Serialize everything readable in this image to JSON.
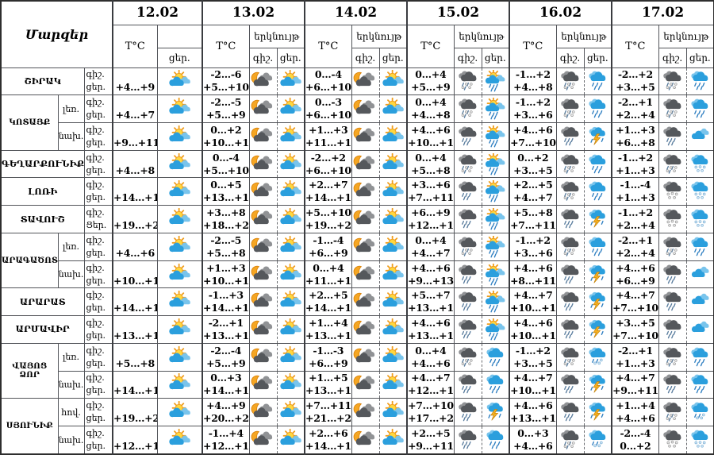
{
  "title": "Մարզեր",
  "dates": [
    "12.02",
    "13.02",
    "14.02",
    "15.02",
    "16.02",
    "17.02"
  ],
  "headers": {
    "temp": "T°C",
    "sky": "երկնույթ",
    "night": "գիշ.",
    "day": "ցեր."
  },
  "palette": {
    "moon": "#f5a623",
    "moon_edge": "#d9820b",
    "sun_fill": "#ffd73e",
    "sun_edge": "#f09d1c",
    "dark_cloud_front": "#55585c",
    "dark_cloud_back": "#909295",
    "blue_cloud_front": "#2b9fdd",
    "blue_cloud_back": "#79c4ec",
    "rain_blue": "#2f7fc1",
    "rain_gray": "#5a7d9e",
    "snow_light": "#e8e8e8",
    "snow_edge": "#9a9a9a",
    "snow_blue": "#d6e9f7",
    "snow_blue_edge": "#7fb2d6",
    "lightning": "#f6b021",
    "lightning_edge": "#c07f07"
  },
  "rows": [
    {
      "region": "ՇԻՐԱԿ",
      "region_rowspan": 1,
      "sub": null,
      "labels": [
        "գիշ.",
        "ցեր."
      ],
      "cells": [
        {
          "day": "+4...+9",
          "day_icon": "sun-cloud"
        },
        {
          "night": "-2...-6",
          "day": "+5...+10",
          "night_icon": "moon-cloud",
          "day_icon": "sun-cloud"
        },
        {
          "night": "0...-4",
          "day": "+6...+10",
          "night_icon": "moon-cloud",
          "day_icon": "sun-cloud"
        },
        {
          "night": "0...+4",
          "day": "+5...+9",
          "night_icon": "dark-sleet",
          "day_icon": "sun-cloud-rain"
        },
        {
          "night": "-1...+2",
          "day": "+4...+8",
          "night_icon": "dark-sleet",
          "day_icon": "blue-rain"
        },
        {
          "night": "-2...+2",
          "day": "+3...+5",
          "night_icon": "dark-sleet",
          "day_icon": "blue-rain"
        }
      ]
    },
    {
      "region": "ԿՈՏԱՅՔ",
      "region_rowspan": 2,
      "sub": "լեռ.",
      "labels": [
        "գիշ.",
        "ցեր."
      ],
      "cells": [
        {
          "day": "+4...+7",
          "day_icon": "sun-cloud"
        },
        {
          "night": "-2...-5",
          "day": "+5...+9",
          "night_icon": "moon-cloud",
          "day_icon": "sun-cloud"
        },
        {
          "night": "0...-3",
          "day": "+6...+10",
          "night_icon": "moon-cloud",
          "day_icon": "sun-cloud"
        },
        {
          "night": "0...+4",
          "day": "+4...+8",
          "night_icon": "dark-sleet",
          "day_icon": "sun-cloud-rain"
        },
        {
          "night": "-1...+2",
          "day": "+3...+6",
          "night_icon": "dark-sleet",
          "day_icon": "blue-rain"
        },
        {
          "night": "-2...+1",
          "day": "+2...+4",
          "night_icon": "dark-sleet",
          "day_icon": "blue-rain"
        }
      ]
    },
    {
      "region": null,
      "region_rowspan": 0,
      "sub": "նախ.",
      "labels": [
        "գիշ.",
        "ցեր."
      ],
      "cells": [
        {
          "day": "+9...+11",
          "day_icon": "sun-cloud"
        },
        {
          "night": "0...+2",
          "day": "+10...+12",
          "night_icon": "moon-cloud",
          "day_icon": "sun-cloud"
        },
        {
          "night": "+1...+3",
          "day": "+11...+13",
          "night_icon": "moon-cloud",
          "day_icon": "sun-cloud"
        },
        {
          "night": "+4...+6",
          "day": "+10...+12",
          "night_icon": "dark-rain",
          "day_icon": "sun-cloud-rain"
        },
        {
          "night": "+4...+6",
          "day": "+7...+10",
          "night_icon": "dark-rain",
          "day_icon": "thunder"
        },
        {
          "night": "+1...+3",
          "day": "+6...+8",
          "night_icon": "dark-rain",
          "day_icon": "blue-clouds"
        }
      ]
    },
    {
      "region": "ԳԵՂԱՐՔՈՒՆԻՔ",
      "region_rowspan": 1,
      "sub": null,
      "labels": [
        "գիշ.",
        "ցեր."
      ],
      "cells": [
        {
          "day": "+4...+8",
          "day_icon": "sun-cloud"
        },
        {
          "night": "0...-4",
          "day": "+5...+10",
          "night_icon": "moon-cloud",
          "day_icon": "sun-cloud"
        },
        {
          "night": "-2...+2",
          "day": "+6...+10",
          "night_icon": "moon-cloud",
          "day_icon": "sun-cloud"
        },
        {
          "night": "0...+4",
          "day": "+5...+8",
          "night_icon": "dark-sleet",
          "day_icon": "sun-cloud-rain"
        },
        {
          "night": "0...+2",
          "day": "+3...+5",
          "night_icon": "dark-sleet",
          "day_icon": "blue-rain"
        },
        {
          "night": "-1...+2",
          "day": "+1...+3",
          "night_icon": "dark-sleet",
          "day_icon": "blue-snow"
        }
      ]
    },
    {
      "region": "ԼՈՌԻ",
      "region_rowspan": 1,
      "sub": null,
      "labels": [
        "գիշ.",
        "ցեր."
      ],
      "cells": [
        {
          "day": "+14...+17",
          "day_icon": "sun-cloud"
        },
        {
          "night": "0...+5",
          "day": "+13...+17",
          "night_icon": "moon-cloud",
          "day_icon": "sun-cloud"
        },
        {
          "night": "+2...+7",
          "day": "+14...+17",
          "night_icon": "moon-cloud",
          "day_icon": "sun-cloud"
        },
        {
          "night": "+3...+6",
          "day": "+7...+11",
          "night_icon": "dark-rain",
          "day_icon": "sun-cloud-rain"
        },
        {
          "night": "+2...+5",
          "day": "+4...+7",
          "night_icon": "dark-sleet",
          "day_icon": "blue-rain"
        },
        {
          "night": "-1...-4",
          "day": "+1...+3",
          "night_icon": "dark-snow",
          "day_icon": "blue-snow"
        }
      ]
    },
    {
      "region": "ՏԱՎՈՒՇ",
      "region_rowspan": 1,
      "sub": null,
      "labels": [
        "գիշ.",
        "Ցեր."
      ],
      "cells": [
        {
          "day": "+19...+22",
          "day_icon": "sun-cloud"
        },
        {
          "night": "+3...+8",
          "day": "+18...+22",
          "night_icon": "moon-cloud",
          "day_icon": "sun-cloud"
        },
        {
          "night": "+5...+10",
          "day": "+19...+22",
          "night_icon": "moon-cloud",
          "day_icon": "sun-cloud"
        },
        {
          "night": "+6...+9",
          "day": "+12...+16",
          "night_icon": "dark-rain",
          "day_icon": "sun-cloud-rain"
        },
        {
          "night": "+5...+8",
          "day": "+7...+11",
          "night_icon": "dark-rain",
          "day_icon": "thunder"
        },
        {
          "night": "-1...+2",
          "day": "+2...+4",
          "night_icon": "dark-snow",
          "day_icon": "blue-snow"
        }
      ]
    },
    {
      "region": "ԱՐԱԳԱԾՈՏՆ",
      "region_rowspan": 2,
      "sub": "լեռ.",
      "labels": [
        "գիշ.",
        "ցեր."
      ],
      "cells": [
        {
          "day": "+4...+6",
          "day_icon": "sun-cloud"
        },
        {
          "night": "-2...-5",
          "day": "+5...+8",
          "night_icon": "moon-cloud",
          "day_icon": "sun-cloud"
        },
        {
          "night": "-1...-4",
          "day": "+6...+9",
          "night_icon": "moon-cloud",
          "day_icon": "sun-cloud"
        },
        {
          "night": "0...+4",
          "day": "+4...+7",
          "night_icon": "dark-sleet",
          "day_icon": "sun-cloud-rain"
        },
        {
          "night": "-1...+2",
          "day": "+3...+6",
          "night_icon": "dark-sleet",
          "day_icon": "blue-rain"
        },
        {
          "night": "-2...+1",
          "day": "+2...+4",
          "night_icon": "dark-sleet",
          "day_icon": "blue-rain"
        }
      ]
    },
    {
      "region": null,
      "region_rowspan": 0,
      "sub": "նախ.",
      "labels": [
        "գիշ.",
        "ցեր."
      ],
      "cells": [
        {
          "day": "+10...+14",
          "day_icon": "sun-cloud"
        },
        {
          "night": "+1...+3",
          "day": "+10...+15",
          "night_icon": "moon-cloud",
          "day_icon": "sun-cloud"
        },
        {
          "night": "0...+4",
          "day": "+11...+15",
          "night_icon": "moon-cloud",
          "day_icon": "sun-cloud"
        },
        {
          "night": "+4...+6",
          "day": "+9...+13",
          "night_icon": "dark-rain",
          "day_icon": "sun-cloud-rain"
        },
        {
          "night": "+4...+6",
          "day": "+8...+11",
          "night_icon": "dark-rain",
          "day_icon": "thunder"
        },
        {
          "night": "+4...+6",
          "day": "+6...+9",
          "night_icon": "dark-rain",
          "day_icon": "blue-clouds"
        }
      ]
    },
    {
      "region": "ԱՐԱՐԱՏ",
      "region_rowspan": 1,
      "sub": null,
      "labels": [
        "գիշ.",
        "ցեր."
      ],
      "cells": [
        {
          "day": "+14...+16",
          "day_icon": "sun-cloud"
        },
        {
          "night": "-1...+3",
          "day": "+14...+16",
          "night_icon": "moon-cloud",
          "day_icon": "sun-cloud"
        },
        {
          "night": "+2...+5",
          "day": "+14...+16",
          "night_icon": "moon-cloud",
          "day_icon": "sun-cloud"
        },
        {
          "night": "+5...+7",
          "day": "+13...+15",
          "night_icon": "dark-rain",
          "day_icon": "sun-cloud-rain"
        },
        {
          "night": "+4...+7",
          "day": "+10...+13",
          "night_icon": "dark-rain",
          "day_icon": "thunder"
        },
        {
          "night": "+4...+7",
          "day": "+7...+10",
          "night_icon": "dark-rain",
          "day_icon": "blue-clouds"
        }
      ]
    },
    {
      "region": "ԱՐՄԱՎԻՐ",
      "region_rowspan": 1,
      "sub": null,
      "labels": [
        "գիշ.",
        "ցեր."
      ],
      "cells": [
        {
          "day": "+13...+15",
          "day_icon": "sun-cloud"
        },
        {
          "night": "-2...+1",
          "day": "+13...+15",
          "night_icon": "moon-cloud",
          "day_icon": "sun-cloud"
        },
        {
          "night": "+1...+4",
          "day": "+13...+15",
          "night_icon": "moon-cloud",
          "day_icon": "sun-cloud"
        },
        {
          "night": "+4...+6",
          "day": "+13...+15",
          "night_icon": "dark-rain",
          "day_icon": "sun-cloud-rain"
        },
        {
          "night": "+4...+6",
          "day": "+10...+12",
          "night_icon": "dark-rain",
          "day_icon": "thunder"
        },
        {
          "night": "+3...+5",
          "day": "+7...+10",
          "night_icon": "dark-rain",
          "day_icon": "blue-clouds"
        }
      ]
    },
    {
      "region": "ՎԱՅՈՑ ՁՈՐ",
      "region_rowspan": 2,
      "sub": "լեռ.",
      "labels": [
        "գիշ.",
        "ցեր."
      ],
      "cells": [
        {
          "day": "+5...+8",
          "day_icon": "sun-cloud"
        },
        {
          "night": "-2...-4",
          "day": "+5...+9",
          "night_icon": "moon-cloud",
          "day_icon": "sun-cloud"
        },
        {
          "night": "-1...-3",
          "day": "+6...+9",
          "night_icon": "moon-cloud",
          "day_icon": "sun-cloud"
        },
        {
          "night": "0...+4",
          "day": "+4...+6",
          "night_icon": "dark-sleet",
          "day_icon": "blue-rain"
        },
        {
          "night": "-1...+2",
          "day": "+3...+5",
          "night_icon": "dark-sleet",
          "day_icon": "blue-sleet"
        },
        {
          "night": "-2...+1",
          "day": "+1...+3",
          "night_icon": "dark-sleet",
          "day_icon": "blue-rain"
        }
      ]
    },
    {
      "region": null,
      "region_rowspan": 0,
      "sub": "նախ.",
      "labels": [
        "գիշ.",
        "ցեր."
      ],
      "cells": [
        {
          "day": "+14...+16",
          "day_icon": "sun-cloud"
        },
        {
          "night": "0...+3",
          "day": "+14...+17",
          "night_icon": "moon-cloud",
          "day_icon": "sun-cloud"
        },
        {
          "night": "+1...+5",
          "day": "+13...+15",
          "night_icon": "moon-cloud",
          "day_icon": "sun-cloud"
        },
        {
          "night": "+4...+7",
          "day": "+12...+15",
          "night_icon": "dark-rain",
          "day_icon": "blue-rain"
        },
        {
          "night": "+4...+7",
          "day": "+10...+12",
          "night_icon": "dark-rain",
          "day_icon": "thunder"
        },
        {
          "night": "+4...+7",
          "day": "+9...+11",
          "night_icon": "dark-rain",
          "day_icon": "blue-rain"
        }
      ]
    },
    {
      "region": "ՍՅՈՒՆԻՔ",
      "region_rowspan": 2,
      "sub": "հով.",
      "labels": [
        "գիշ.",
        "ցեր."
      ],
      "cells": [
        {
          "day": "+19...+22",
          "day_icon": "sun-cloud"
        },
        {
          "night": "+4...+9",
          "day": "+20...+23",
          "night_icon": "moon-cloud",
          "day_icon": "sun-cloud"
        },
        {
          "night": "+7...+11",
          "day": "+21...+24",
          "night_icon": "moon-cloud",
          "day_icon": "sun-cloud"
        },
        {
          "night": "+7...+10",
          "day": "+17...+20",
          "night_icon": "dark-rain",
          "day_icon": "thunder"
        },
        {
          "night": "+4...+6",
          "day": "+13...+15",
          "night_icon": "dark-rain",
          "day_icon": "thunder"
        },
        {
          "night": "+1...+4",
          "day": "+4...+6",
          "night_icon": "dark-sleet",
          "day_icon": "blue-sleet"
        }
      ]
    },
    {
      "region": null,
      "region_rowspan": 0,
      "sub": "նախ.",
      "labels": [
        "գիշ.",
        "ցեր."
      ],
      "cells": [
        {
          "day": "+12...+16",
          "day_icon": "sun-cloud"
        },
        {
          "night": "-1...+4",
          "day": "+12...+17",
          "night_icon": "moon-cloud",
          "day_icon": "sun-cloud"
        },
        {
          "night": "+2...+6",
          "day": "+14...+19",
          "night_icon": "moon-cloud",
          "day_icon": "sun-cloud"
        },
        {
          "night": "+2...+5",
          "day": "+9...+11",
          "night_icon": "dark-rain",
          "day_icon": "blue-rain"
        },
        {
          "night": "0...+3",
          "day": "+4...+6",
          "night_icon": "dark-sleet",
          "day_icon": "blue-sleet"
        },
        {
          "night": "-2...-4",
          "day": "0...+2",
          "night_icon": "dark-snow",
          "day_icon": "blue-snow"
        }
      ]
    }
  ]
}
